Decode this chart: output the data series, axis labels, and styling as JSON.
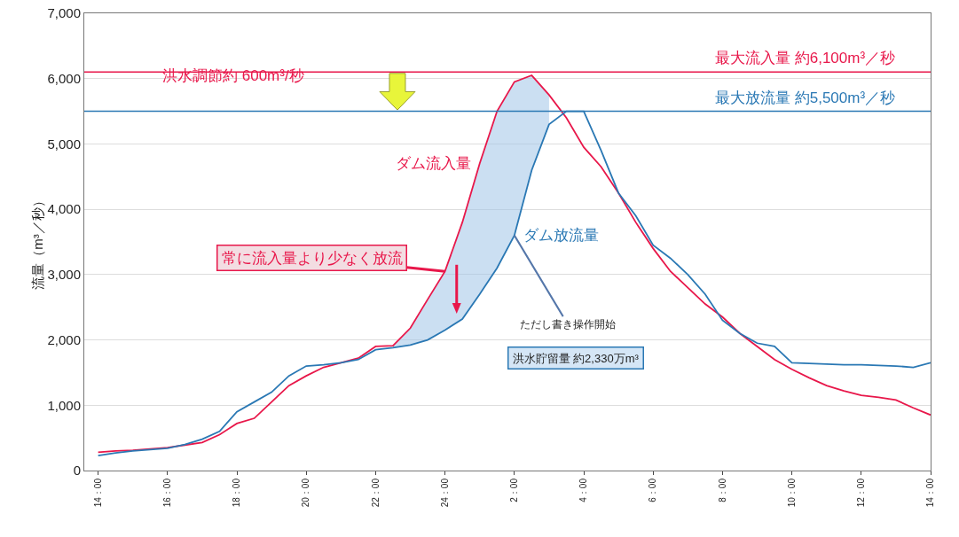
{
  "chart_data": {
    "type": "line",
    "ylabel": "流量（m³／秒）",
    "categories": [
      "14：00",
      null,
      null,
      null,
      "16：00",
      null,
      null,
      null,
      "18：00",
      null,
      null,
      null,
      "20：00",
      null,
      null,
      null,
      "22：00",
      null,
      null,
      null,
      "24：00",
      null,
      null,
      null,
      "2：00",
      null,
      null,
      null,
      "4：00",
      null,
      null,
      null,
      "6：00",
      null,
      null,
      null,
      "8：00",
      null,
      null,
      null,
      "10：00",
      null,
      null,
      null,
      "12：00",
      null,
      null,
      null,
      "14：00"
    ],
    "series": [
      {
        "name": "ダム流入量",
        "color": "#e8174a",
        "values": [
          280,
          300,
          310,
          330,
          350,
          390,
          430,
          550,
          720,
          800,
          1050,
          1300,
          1450,
          1580,
          1650,
          1720,
          1900,
          1910,
          2180,
          2620,
          3050,
          3800,
          4700,
          5500,
          5950,
          6050,
          5750,
          5400,
          4950,
          4650,
          4250,
          3800,
          3400,
          3050,
          2800,
          2550,
          2350,
          2100,
          1900,
          1700,
          1550,
          1420,
          1300,
          1220,
          1150,
          1120,
          1080,
          960,
          850
        ],
        "lower": [
          null,
          null,
          null,
          null,
          null,
          null,
          null,
          null,
          null,
          null,
          null,
          null,
          null,
          null,
          null,
          null,
          null,
          1880,
          1920,
          2000,
          2150,
          2320,
          2700,
          3100,
          3600,
          4600,
          5300,
          null,
          null,
          null,
          null,
          null,
          null,
          null,
          null,
          null,
          null,
          null,
          null,
          null,
          null,
          null,
          null,
          null,
          null,
          null,
          null,
          null,
          null
        ],
        "upper": [
          null,
          null,
          null,
          null,
          null,
          null,
          null,
          null,
          null,
          null,
          null,
          null,
          null,
          null,
          null,
          null,
          null,
          1910,
          2180,
          2620,
          3050,
          3800,
          4700,
          5500,
          5950,
          6050,
          5750,
          null,
          null,
          null,
          null,
          null,
          null,
          null,
          null,
          null,
          null,
          null,
          null,
          null,
          null,
          null,
          null,
          null,
          null,
          null,
          null,
          null,
          null
        ]
      },
      {
        "name": "ダム放流量",
        "color": "#2a78b4",
        "values": [
          230,
          270,
          300,
          320,
          340,
          400,
          480,
          600,
          900,
          1050,
          1200,
          1450,
          1600,
          1620,
          1650,
          1700,
          1850,
          1880,
          1920,
          2000,
          2150,
          2320,
          2700,
          3100,
          3600,
          4600,
          5300,
          5500,
          5500,
          4900,
          4250,
          3900,
          3450,
          3250,
          3000,
          2700,
          2300,
          2100,
          1950,
          1900,
          1650,
          1640,
          1630,
          1620,
          1620,
          1610,
          1600,
          1580,
          1650
        ]
      }
    ],
    "ylim": [
      0,
      7000
    ],
    "yticks": [
      0,
      {
        "value": 1000,
        "label": "1,000"
      },
      {
        "value": 2000,
        "label": "2,000"
      },
      {
        "value": 3000,
        "label": "3,000"
      },
      {
        "value": 4000,
        "label": "4,000"
      },
      {
        "value": 5000,
        "label": "5,000"
      },
      {
        "value": 6000,
        "label": "6,000"
      },
      {
        "value": 7000,
        "label": "7,000"
      }
    ],
    "ref_lines": [
      {
        "axis": "y",
        "value": 6100,
        "label": "最大流入量 約6,100m³／秒",
        "color": "#e8174a"
      },
      {
        "axis": "y",
        "value": 5500,
        "label": "最大放流量 約5,500m³／秒",
        "color": "#2a78b4"
      }
    ],
    "annotations": [
      "洪水調節約 600m³/秒",
      {
        "text": "常に流入量より少なく放流",
        "x": "24：00",
        "y": 3050
      },
      {
        "text": "ただし書き操作開始",
        "x": "2：00",
        "y": 3600
      },
      "洪水貯留量 約2,330万m³"
    ],
    "grid": "y",
    "legend": false,
    "line_style": "solid",
    "marker": "none"
  }
}
